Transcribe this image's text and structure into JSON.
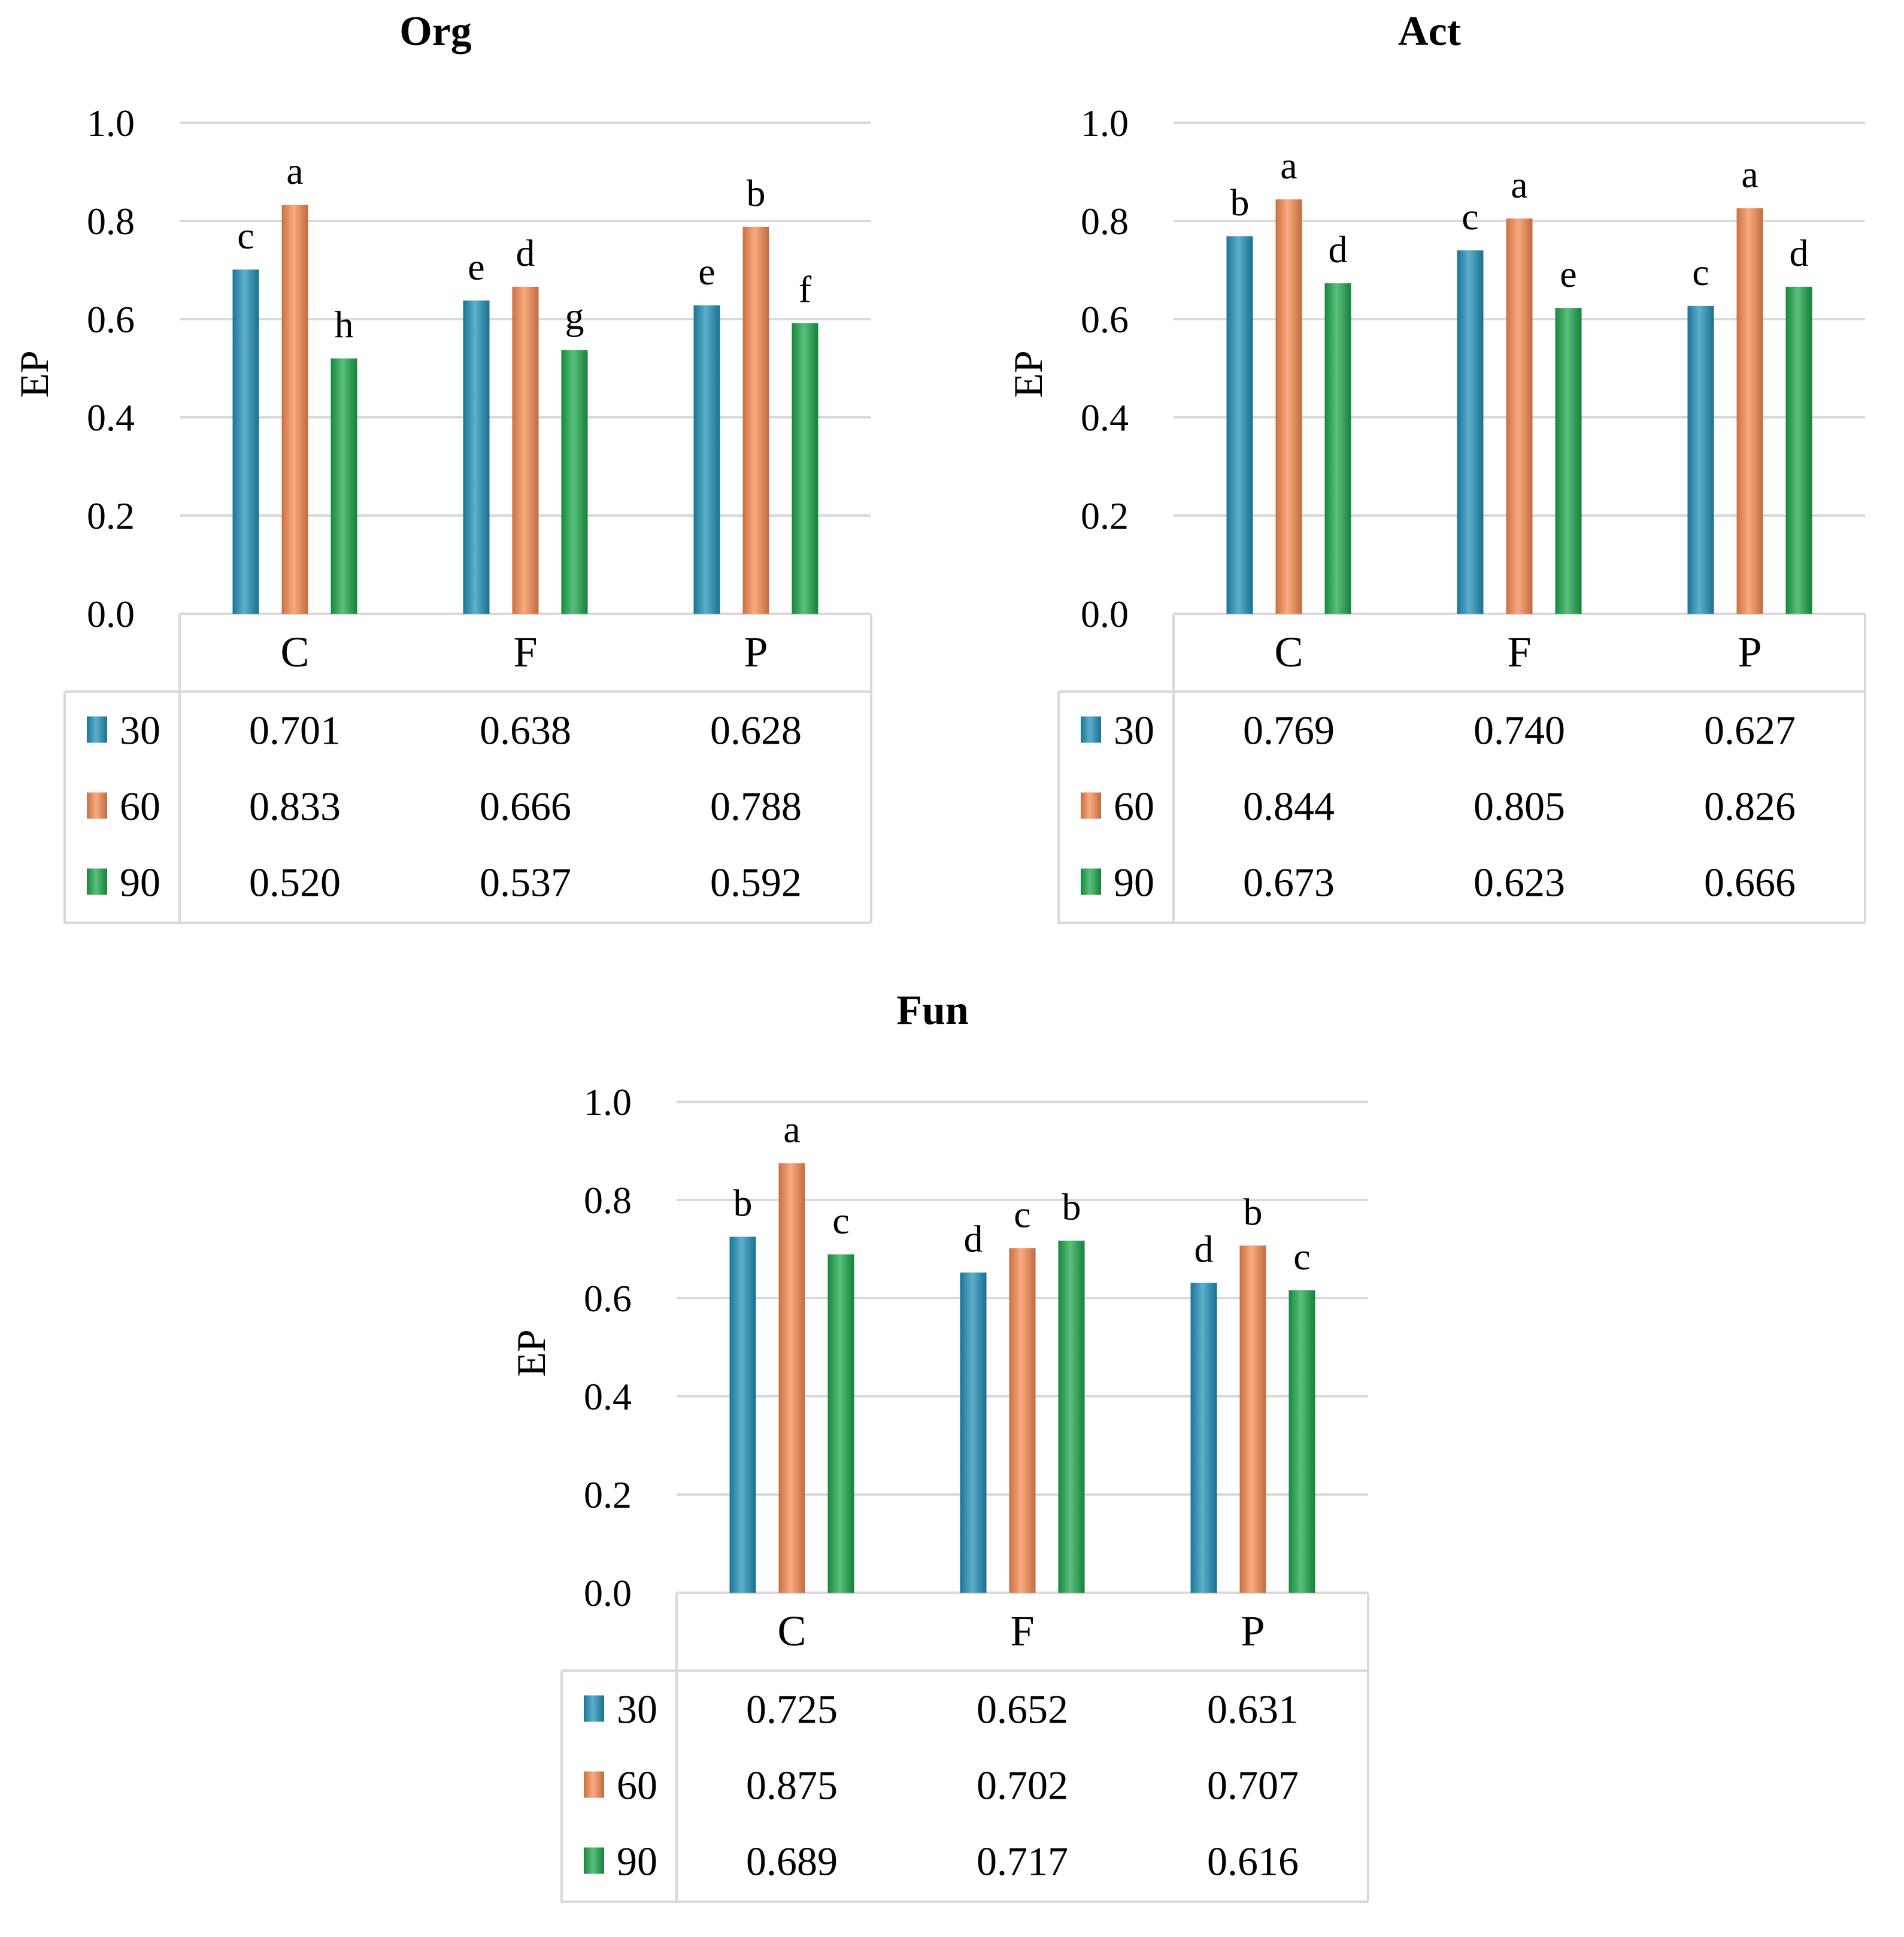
{
  "colors": {
    "30": "#1f8fb8",
    "60": "#f7894f",
    "90": "#1aa64a",
    "grid": "#d9d9d9"
  },
  "chart_data": [
    {
      "type": "bar",
      "title": "Org",
      "ylabel": "EP",
      "ylim": [
        0,
        1.0
      ],
      "yticks": [
        "0.0",
        "0.2",
        "0.4",
        "0.6",
        "0.8",
        "1.0"
      ],
      "categories": [
        "C",
        "F",
        "P"
      ],
      "series": [
        {
          "name": "30",
          "values": [
            0.701,
            0.638,
            0.628
          ],
          "labels": [
            "0.701",
            "0.638",
            "0.628"
          ],
          "letters": [
            "c",
            "e",
            "e"
          ]
        },
        {
          "name": "60",
          "values": [
            0.833,
            0.666,
            0.788
          ],
          "labels": [
            "0.833",
            "0.666",
            "0.788"
          ],
          "letters": [
            "a",
            "d",
            "b"
          ]
        },
        {
          "name": "90",
          "values": [
            0.52,
            0.537,
            0.592
          ],
          "labels": [
            "0.520",
            "0.537",
            "0.592"
          ],
          "letters": [
            "h",
            "g",
            "f"
          ]
        }
      ]
    },
    {
      "type": "bar",
      "title": "Act",
      "ylabel": "EP",
      "ylim": [
        0,
        1.0
      ],
      "yticks": [
        "0.0",
        "0.2",
        "0.4",
        "0.6",
        "0.8",
        "1.0"
      ],
      "categories": [
        "C",
        "F",
        "P"
      ],
      "series": [
        {
          "name": "30",
          "values": [
            0.769,
            0.74,
            0.627
          ],
          "labels": [
            "0.769",
            "0.740",
            "0.627"
          ],
          "letters": [
            "b",
            "c",
            "c"
          ]
        },
        {
          "name": "60",
          "values": [
            0.844,
            0.805,
            0.826
          ],
          "labels": [
            "0.844",
            "0.805",
            "0.826"
          ],
          "letters": [
            "a",
            "a",
            "a"
          ]
        },
        {
          "name": "90",
          "values": [
            0.673,
            0.623,
            0.666
          ],
          "labels": [
            "0.673",
            "0.623",
            "0.666"
          ],
          "letters": [
            "d",
            "e",
            "d"
          ]
        }
      ]
    },
    {
      "type": "bar",
      "title": "Fun",
      "ylabel": "EP",
      "ylim": [
        0,
        1.0
      ],
      "yticks": [
        "0.0",
        "0.2",
        "0.4",
        "0.6",
        "0.8",
        "1.0"
      ],
      "categories": [
        "C",
        "F",
        "P"
      ],
      "series": [
        {
          "name": "30",
          "values": [
            0.725,
            0.652,
            0.631
          ],
          "labels": [
            "0.725",
            "0.652",
            "0.631"
          ],
          "letters": [
            "b",
            "d",
            "d"
          ]
        },
        {
          "name": "60",
          "values": [
            0.875,
            0.702,
            0.707
          ],
          "labels": [
            "0.875",
            "0.702",
            "0.707"
          ],
          "letters": [
            "a",
            "c",
            "b"
          ]
        },
        {
          "name": "90",
          "values": [
            0.689,
            0.717,
            0.616
          ],
          "labels": [
            "0.689",
            "0.717",
            "0.616"
          ],
          "letters": [
            "c",
            "b",
            "c"
          ]
        }
      ]
    }
  ]
}
